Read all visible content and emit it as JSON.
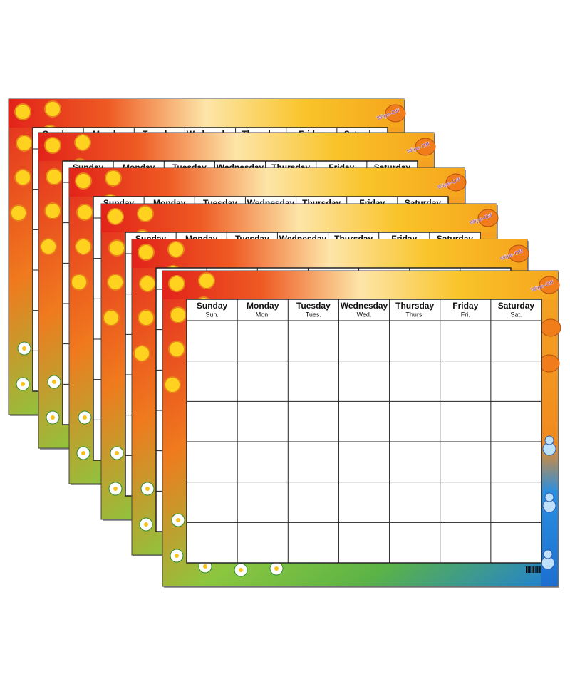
{
  "brand": "Wipe-Off",
  "days": [
    {
      "name": "Sunday",
      "abbr": "Sun."
    },
    {
      "name": "Monday",
      "abbr": "Mon."
    },
    {
      "name": "Tuesday",
      "abbr": "Tues."
    },
    {
      "name": "Wednesday",
      "abbr": "Wed."
    },
    {
      "name": "Thursday",
      "abbr": "Thurs."
    },
    {
      "name": "Friday",
      "abbr": "Fri."
    },
    {
      "name": "Saturday",
      "abbr": "Sat."
    }
  ]
}
